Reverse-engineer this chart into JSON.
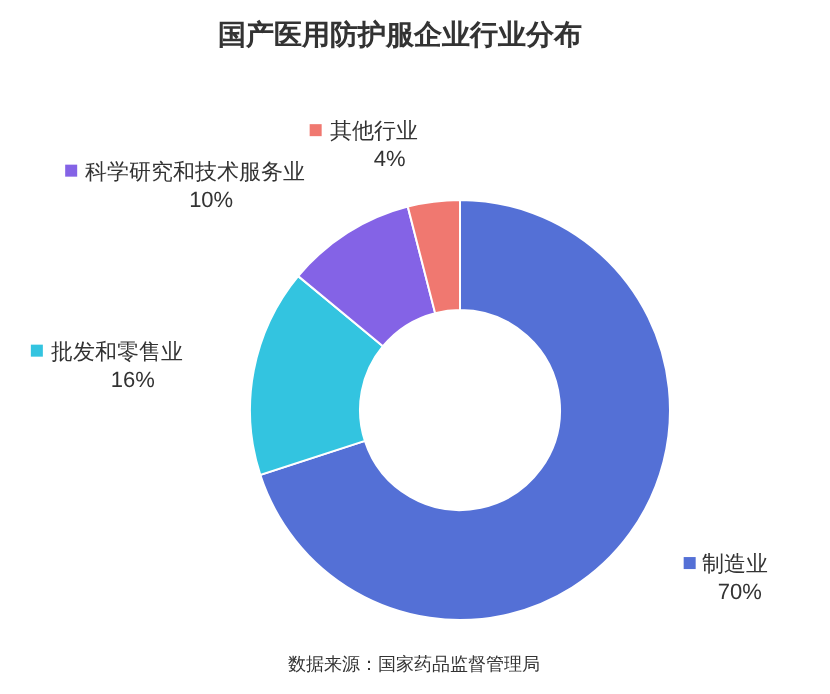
{
  "chart_data": {
    "type": "donut",
    "title": "国产医用防护服企业行业分布",
    "categories": [
      "制造业",
      "批发和零售业",
      "科学研究和技术服务业",
      "其他行业"
    ],
    "values": [
      70,
      16,
      10,
      4
    ],
    "value_labels": [
      "70%",
      "16%",
      "10%",
      "4%"
    ],
    "colors": [
      "#5470d6",
      "#33c4e0",
      "#8463e6",
      "#f07870"
    ],
    "legend": "left",
    "annotations": [
      "数据来源：国家药品监督管理局"
    ]
  }
}
